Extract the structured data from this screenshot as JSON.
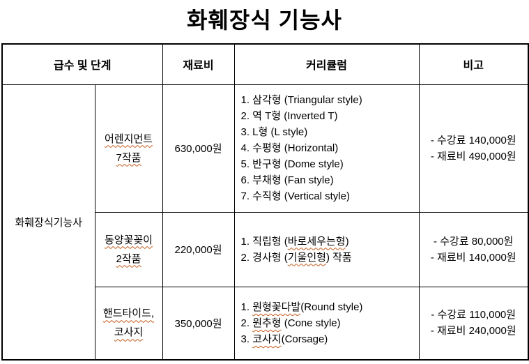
{
  "title": "화훼장식 기능사",
  "table": {
    "header": {
      "level": "급수 및 단계",
      "cost": "재료비",
      "curriculum": "커리큘럼",
      "note": "비고"
    },
    "category": "화훼장식기능사",
    "rows": [
      {
        "stage": [
          {
            "text": "어렌지먼트",
            "squiggle": true
          },
          {
            "text": "7작품",
            "squiggle": true
          }
        ],
        "cost": "630,000원",
        "curriculum": [
          [
            {
              "text": "1. 삼각형 (Triangular style)",
              "squiggle": false
            }
          ],
          [
            {
              "text": "2. 역 T형 (Inverted T)",
              "squiggle": false
            }
          ],
          [
            {
              "text": "3. L형 (L style)",
              "squiggle": false
            }
          ],
          [
            {
              "text": "4. 수평형 (Horizontal)",
              "squiggle": false
            }
          ],
          [
            {
              "text": "5. 반구형 (Dome style)",
              "squiggle": false
            }
          ],
          [
            {
              "text": "6. 부채형 (Fan style)",
              "squiggle": false
            }
          ],
          [
            {
              "text": "7. 수직형 (Vertical style)",
              "squiggle": false
            }
          ]
        ],
        "notes": [
          "- 수강료 140,000원",
          "- 재료비 490,000원"
        ]
      },
      {
        "stage": [
          {
            "text": "동양꽃꽂이",
            "squiggle": true
          },
          {
            "text": "2작품",
            "squiggle": true
          }
        ],
        "cost": "220,000원",
        "curriculum": [
          [
            {
              "text": "1. 직립형 (",
              "squiggle": false
            },
            {
              "text": "바로세우는형",
              "squiggle": true
            },
            {
              "text": ")",
              "squiggle": false
            }
          ],
          [
            {
              "text": "2. 경사형 (",
              "squiggle": false
            },
            {
              "text": "기울인형",
              "squiggle": true
            },
            {
              "text": ") 작품",
              "squiggle": false
            }
          ]
        ],
        "notes": [
          "- 수강료 80,000원",
          "- 재료비 140,000원"
        ]
      },
      {
        "stage": [
          {
            "text": "핸드타이드,",
            "squiggle": true
          },
          {
            "text": "코사지",
            "squiggle": true
          }
        ],
        "cost": "350,000원",
        "curriculum": [
          [
            {
              "text": "1. ",
              "squiggle": false
            },
            {
              "text": "원형꽃다발",
              "squiggle": true
            },
            {
              "text": "(Round style)",
              "squiggle": false
            }
          ],
          [
            {
              "text": "2. ",
              "squiggle": false
            },
            {
              "text": "원추형",
              "squiggle": true
            },
            {
              "text": " (Cone style)",
              "squiggle": false
            }
          ],
          [
            {
              "text": "3. ",
              "squiggle": false
            },
            {
              "text": "코사지",
              "squiggle": true
            },
            {
              "text": "(Corsage)",
              "squiggle": false
            }
          ]
        ],
        "notes": [
          "- 수강료 110,000원",
          "- 재료비 240,000원"
        ]
      }
    ]
  },
  "colors": {
    "squiggle": "#c4591a",
    "border": "#000000",
    "text": "#000000",
    "background": "#ffffff"
  }
}
